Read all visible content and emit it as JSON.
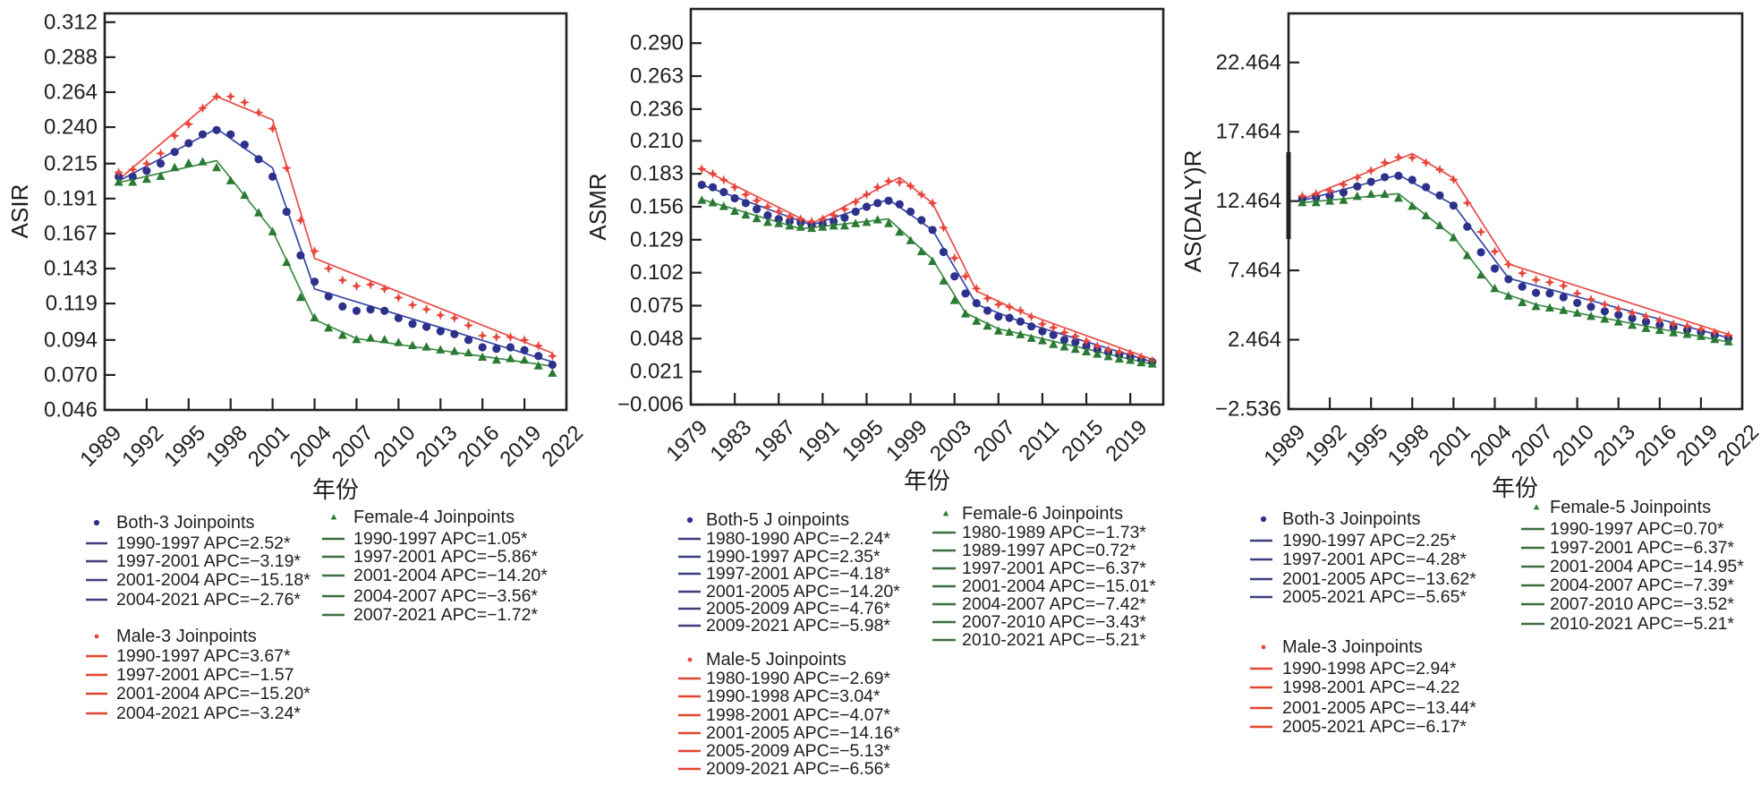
{
  "chart_data": [
    {
      "type": "line",
      "title": "",
      "xlabel": "年份",
      "ylabel": "ASIR",
      "xlim": [
        1989,
        2022
      ],
      "ylim": [
        0.046,
        0.318
      ],
      "grid": false,
      "legend_position": "bottom",
      "xticks": [
        1989,
        1992,
        1995,
        1998,
        2001,
        2004,
        2007,
        2010,
        2013,
        2016,
        2019,
        2022
      ],
      "xtick_labels": [
        "1989",
        "1992",
        "1995",
        "1998",
        "2001",
        "2004",
        "2007",
        "2010",
        "2013",
        "2016",
        "2019",
        "2022"
      ],
      "yticks": [
        0.046,
        0.07,
        0.094,
        0.119,
        0.143,
        0.167,
        0.191,
        0.215,
        0.24,
        0.264,
        0.288,
        0.312
      ],
      "ytick_labels": [
        "0.046",
        "0.070",
        "0.094",
        "0.119",
        "0.143",
        "0.167",
        "0.191",
        "0.215",
        "0.240",
        "0.264",
        "0.288",
        "0.312"
      ],
      "x": [
        1990,
        1991,
        1992,
        1993,
        1994,
        1995,
        1996,
        1997,
        1998,
        1999,
        2000,
        2001,
        2002,
        2003,
        2004,
        2005,
        2006,
        2007,
        2008,
        2009,
        2010,
        2011,
        2012,
        2013,
        2014,
        2015,
        2016,
        2017,
        2018,
        2019,
        2020,
        2021
      ],
      "series": [
        {
          "name": "Both",
          "marker": "circle",
          "marker_color": "#2c318a",
          "line_color": "#3846a8",
          "legend_line_color": "#3c3f7d",
          "values": [
            0.206,
            0.206,
            0.21,
            0.215,
            0.223,
            0.229,
            0.235,
            0.238,
            0.235,
            0.228,
            0.218,
            0.206,
            0.182,
            0.152,
            0.134,
            0.124,
            0.117,
            0.114,
            0.115,
            0.114,
            0.109,
            0.105,
            0.103,
            0.1,
            0.098,
            0.094,
            0.089,
            0.088,
            0.089,
            0.087,
            0.083,
            0.077
          ],
          "fit": {
            "x": [
              1990,
              1997,
              2001,
              2004,
              2021
            ],
            "y": [
              0.203,
              0.239,
              0.212,
              0.129,
              0.079
            ]
          },
          "legend": {
            "title": "Both-3 Joinpoints",
            "entries": [
              "1990-1997 APC=2.52*",
              "1997-2001 APC=−3.19*",
              "2001-2004 APC=−15.18*",
              "2004-2021 APC=−2.76*"
            ]
          }
        },
        {
          "name": "Male",
          "marker": "plus",
          "marker_color": "#e8453c",
          "line_color": "#ea4a44",
          "legend_line_color": "#e2452f",
          "values": [
            0.209,
            0.211,
            0.215,
            0.222,
            0.234,
            0.242,
            0.253,
            0.261,
            0.261,
            0.257,
            0.25,
            0.239,
            0.212,
            0.176,
            0.155,
            0.143,
            0.135,
            0.131,
            0.132,
            0.129,
            0.123,
            0.118,
            0.115,
            0.111,
            0.109,
            0.104,
            0.097,
            0.096,
            0.096,
            0.094,
            0.09,
            0.083
          ],
          "fit": {
            "x": [
              1990,
              1997,
              2001,
              2004,
              2021
            ],
            "y": [
              0.204,
              0.261,
              0.245,
              0.15,
              0.085
            ]
          },
          "legend": {
            "title": "Male-3 Joinpoints",
            "entries": [
              "1990-1997 APC=3.67*",
              "1997-2001 APC=−1.57",
              "2001-2004 APC=−15.20*",
              "2004-2021 APC=−3.24*"
            ]
          }
        },
        {
          "name": "Female",
          "marker": "triangle",
          "marker_color": "#2a7a34",
          "line_color": "#3d8c46",
          "legend_line_color": "#3b6e3f",
          "values": [
            0.202,
            0.202,
            0.204,
            0.206,
            0.212,
            0.215,
            0.216,
            0.212,
            0.203,
            0.193,
            0.181,
            0.168,
            0.147,
            0.123,
            0.109,
            0.102,
            0.097,
            0.094,
            0.095,
            0.094,
            0.092,
            0.09,
            0.089,
            0.087,
            0.086,
            0.085,
            0.082,
            0.08,
            0.081,
            0.08,
            0.076,
            0.071
          ],
          "fit": {
            "x": [
              1990,
              1997,
              2001,
              2004,
              2007,
              2021
            ],
            "y": [
              0.202,
              0.217,
              0.169,
              0.108,
              0.095,
              0.076
            ]
          },
          "legend": {
            "title": "Female-4 Joinpoints",
            "entries": [
              "1990-1997 APC=1.05*",
              "1997-2001 APC=−5.86*",
              "2001-2004 APC=−14.20*",
              "2004-2007 APC=−3.56*",
              "2007-2021 APC=−1.72*"
            ]
          }
        }
      ]
    },
    {
      "type": "line",
      "title": "",
      "xlabel": "年份",
      "ylabel": "ASMR",
      "xlim": [
        1979,
        2022
      ],
      "ylim": [
        -0.006,
        0.318
      ],
      "grid": false,
      "legend_position": "bottom",
      "xticks": [
        1979,
        1983,
        1987,
        1991,
        1995,
        1999,
        2003,
        2007,
        2011,
        2015,
        2019
      ],
      "xtick_labels": [
        "1979",
        "1983",
        "1987",
        "1991",
        "1995",
        "1999",
        "2003",
        "2007",
        "2011",
        "2015",
        "2019"
      ],
      "yticks": [
        -0.006,
        0.021,
        0.048,
        0.075,
        0.102,
        0.129,
        0.156,
        0.183,
        0.21,
        0.236,
        0.263,
        0.29
      ],
      "ytick_labels": [
        "−0.006",
        "0.021",
        "0.048",
        "0.075",
        "0.102",
        "0.129",
        "0.156",
        "0.183",
        "0.210",
        "0.236",
        "0.263",
        "0.290"
      ],
      "x": [
        1980,
        1981,
        1982,
        1983,
        1984,
        1985,
        1986,
        1987,
        1988,
        1989,
        1990,
        1991,
        1992,
        1993,
        1994,
        1995,
        1996,
        1997,
        1998,
        1999,
        2000,
        2001,
        2002,
        2003,
        2004,
        2005,
        2006,
        2007,
        2008,
        2009,
        2010,
        2011,
        2012,
        2013,
        2014,
        2015,
        2016,
        2017,
        2018,
        2019,
        2020,
        2021
      ],
      "series": [
        {
          "name": "Both",
          "marker": "circle",
          "marker_color": "#2c318a",
          "line_color": "#3846a8",
          "legend_line_color": "#3c3f7d",
          "values": [
            0.174,
            0.172,
            0.168,
            0.163,
            0.159,
            0.154,
            0.149,
            0.146,
            0.144,
            0.143,
            0.141,
            0.142,
            0.144,
            0.147,
            0.152,
            0.156,
            0.159,
            0.161,
            0.158,
            0.152,
            0.145,
            0.137,
            0.119,
            0.099,
            0.085,
            0.077,
            0.071,
            0.066,
            0.065,
            0.062,
            0.058,
            0.054,
            0.051,
            0.047,
            0.045,
            0.042,
            0.039,
            0.037,
            0.035,
            0.033,
            0.031,
            0.029
          ],
          "fit": {
            "x": [
              1980,
              1990,
              1997,
              2001,
              2005,
              2009,
              2021
            ],
            "y": [
              0.174,
              0.141,
              0.162,
              0.137,
              0.076,
              0.062,
              0.029
            ]
          },
          "legend": {
            "title": "Both-5 J oinpoints",
            "entries": [
              "1980-1990 APC=−2.24*",
              "1990-1997 APC=2.35*",
              "1997-2001 APC=−4.18*",
              "2001-2005 APC=−14.20*",
              "2005-2009 APC=−4.76*",
              "2009-2021 APC=−5.98*"
            ]
          }
        },
        {
          "name": "Male",
          "marker": "plus",
          "marker_color": "#e8453c",
          "line_color": "#ea4a44",
          "legend_line_color": "#e2452f",
          "values": [
            0.187,
            0.183,
            0.178,
            0.172,
            0.166,
            0.161,
            0.156,
            0.152,
            0.148,
            0.146,
            0.144,
            0.146,
            0.149,
            0.154,
            0.16,
            0.166,
            0.172,
            0.177,
            0.176,
            0.173,
            0.166,
            0.159,
            0.139,
            0.114,
            0.099,
            0.089,
            0.081,
            0.076,
            0.074,
            0.071,
            0.066,
            0.06,
            0.057,
            0.053,
            0.05,
            0.046,
            0.042,
            0.039,
            0.037,
            0.036,
            0.033,
            0.03
          ],
          "fit": {
            "x": [
              1980,
              1990,
              1998,
              2001,
              2005,
              2009,
              2021
            ],
            "y": [
              0.187,
              0.142,
              0.18,
              0.159,
              0.087,
              0.07,
              0.031
            ]
          },
          "legend": {
            "title": "Male-5 Joinpoints",
            "entries": [
              "1980-1990 APC=−2.69*",
              "1990-1998 APC=3.04*",
              "1998-2001 APC=−4.07*",
              "2001-2005 APC=−14.16*",
              "2005-2009 APC=−5.13*",
              "2009-2021 APC=−6.56*"
            ]
          }
        },
        {
          "name": "Female",
          "marker": "triangle",
          "marker_color": "#2a7a34",
          "line_color": "#3d8c46",
          "legend_line_color": "#3b6e3f",
          "values": [
            0.161,
            0.159,
            0.156,
            0.152,
            0.149,
            0.146,
            0.143,
            0.142,
            0.14,
            0.139,
            0.138,
            0.139,
            0.14,
            0.14,
            0.142,
            0.143,
            0.145,
            0.142,
            0.135,
            0.128,
            0.119,
            0.111,
            0.095,
            0.079,
            0.068,
            0.062,
            0.058,
            0.054,
            0.053,
            0.051,
            0.048,
            0.046,
            0.043,
            0.041,
            0.039,
            0.037,
            0.035,
            0.033,
            0.031,
            0.03,
            0.028,
            0.027
          ],
          "fit": {
            "x": [
              1980,
              1989,
              1997,
              2001,
              2004,
              2007,
              2010,
              2021
            ],
            "y": [
              0.162,
              0.138,
              0.146,
              0.113,
              0.069,
              0.056,
              0.05,
              0.027
            ]
          },
          "legend": {
            "title": "Female-6 Joinpoints",
            "entries": [
              "1980-1989 APC=−1.73*",
              "1989-1997 APC=0.72*",
              "1997-2001 APC=−6.37*",
              "2001-2004 APC=−15.01*",
              "2004-2007 APC=−7.42*",
              "2007-2010 APC=−3.43*",
              "2010-2021 APC=−5.21*"
            ]
          }
        }
      ]
    },
    {
      "type": "line",
      "title": "",
      "xlabel": "年份",
      "ylabel": "AS(DALY)R",
      "xlim": [
        1989,
        2022
      ],
      "ylim": [
        -2.536,
        26.0
      ],
      "grid": false,
      "legend_position": "bottom",
      "xticks": [
        1989,
        1992,
        1995,
        1998,
        2001,
        2004,
        2007,
        2010,
        2013,
        2016,
        2019,
        2022
      ],
      "xtick_labels": [
        "1989",
        "1992",
        "1995",
        "1998",
        "2001",
        "2004",
        "2007",
        "2010",
        "2013",
        "2016",
        "2019",
        "2022"
      ],
      "yticks": [
        -2.536,
        2.464,
        7.464,
        12.464,
        17.464,
        22.464
      ],
      "ytick_labels": [
        "−2.536",
        "2.464",
        "7.464",
        "12.464",
        "17.464",
        "22.464"
      ],
      "x": [
        1990,
        1991,
        1992,
        1993,
        1994,
        1995,
        1996,
        1997,
        1998,
        1999,
        2000,
        2001,
        2002,
        2003,
        2004,
        2005,
        2006,
        2007,
        2008,
        2009,
        2010,
        2011,
        2012,
        2013,
        2014,
        2015,
        2016,
        2017,
        2018,
        2019,
        2020,
        2021
      ],
      "series": [
        {
          "name": "Both",
          "marker": "circle",
          "marker_color": "#2c318a",
          "line_color": "#3846a8",
          "legend_line_color": "#3c3f7d",
          "values": [
            12.65,
            12.72,
            12.83,
            13.09,
            13.52,
            13.86,
            14.19,
            14.29,
            13.99,
            13.47,
            12.87,
            12.14,
            10.62,
            8.77,
            7.6,
            6.83,
            6.29,
            5.85,
            5.81,
            5.53,
            5.12,
            4.84,
            4.52,
            4.26,
            4.02,
            3.76,
            3.54,
            3.37,
            3.18,
            3.0,
            2.79,
            2.57
          ],
          "fit": {
            "x": [
              1990,
              1997,
              2001,
              2005,
              2021
            ],
            "y": [
              12.5,
              14.35,
              12.2,
              6.9,
              2.6
            ]
          },
          "legend": {
            "title": "Both-3 Joinpoints",
            "entries": [
              "1990-1997 APC=2.25*",
              "1997-2001 APC=−4.28*",
              "2001-2005 APC=−13.62*",
              "2005-2021 APC=−5.65*"
            ]
          }
        },
        {
          "name": "Male",
          "marker": "plus",
          "marker_color": "#e8453c",
          "line_color": "#ea4a44",
          "legend_line_color": "#e2452f",
          "values": [
            12.83,
            13.0,
            13.22,
            13.65,
            14.17,
            14.66,
            15.24,
            15.63,
            15.59,
            15.24,
            14.73,
            14.01,
            12.33,
            10.24,
            8.83,
            7.9,
            7.26,
            6.78,
            6.61,
            6.35,
            5.81,
            5.38,
            5.01,
            4.69,
            4.41,
            4.15,
            3.87,
            3.61,
            3.44,
            3.22,
            3.0,
            2.79
          ],
          "fit": {
            "x": [
              1990,
              1998,
              2001,
              2005,
              2021
            ],
            "y": [
              12.6,
              15.89,
              14.12,
              7.93,
              2.85
            ]
          },
          "legend": {
            "title": "Male-3 Joinpoints",
            "entries": [
              "1990-1998 APC=2.94*",
              "1998-2001 APC=−4.22",
              "2001-2005 APC=−13.44*",
              "2005-2021 APC=−6.17*"
            ]
          }
        },
        {
          "name": "Female",
          "marker": "triangle",
          "marker_color": "#2a7a34",
          "line_color": "#3d8c46",
          "legend_line_color": "#3b6e3f",
          "values": [
            12.33,
            12.33,
            12.44,
            12.5,
            12.78,
            12.93,
            12.93,
            12.65,
            12.07,
            11.38,
            10.67,
            9.8,
            8.51,
            7.11,
            6.13,
            5.59,
            5.12,
            4.84,
            4.73,
            4.56,
            4.36,
            4.13,
            3.93,
            3.72,
            3.48,
            3.26,
            3.11,
            2.94,
            2.83,
            2.68,
            2.46,
            2.29
          ],
          "fit": {
            "x": [
              1990,
              1997,
              2001,
              2004,
              2007,
              2010,
              2021
            ],
            "y": [
              12.35,
              13.0,
              9.9,
              6.05,
              5.0,
              4.4,
              2.3
            ]
          },
          "legend": {
            "title": "Female-5 Joinpoints",
            "entries": [
              "1990-1997 APC=0.70*",
              "1997-2001 APC=−6.37*",
              "2001-2004 APC=−14.95*",
              "2004-2007 APC=−7.39*",
              "2007-2010 APC=−3.52*",
              "2010-2021 APC=−5.21*"
            ]
          }
        }
      ]
    }
  ]
}
